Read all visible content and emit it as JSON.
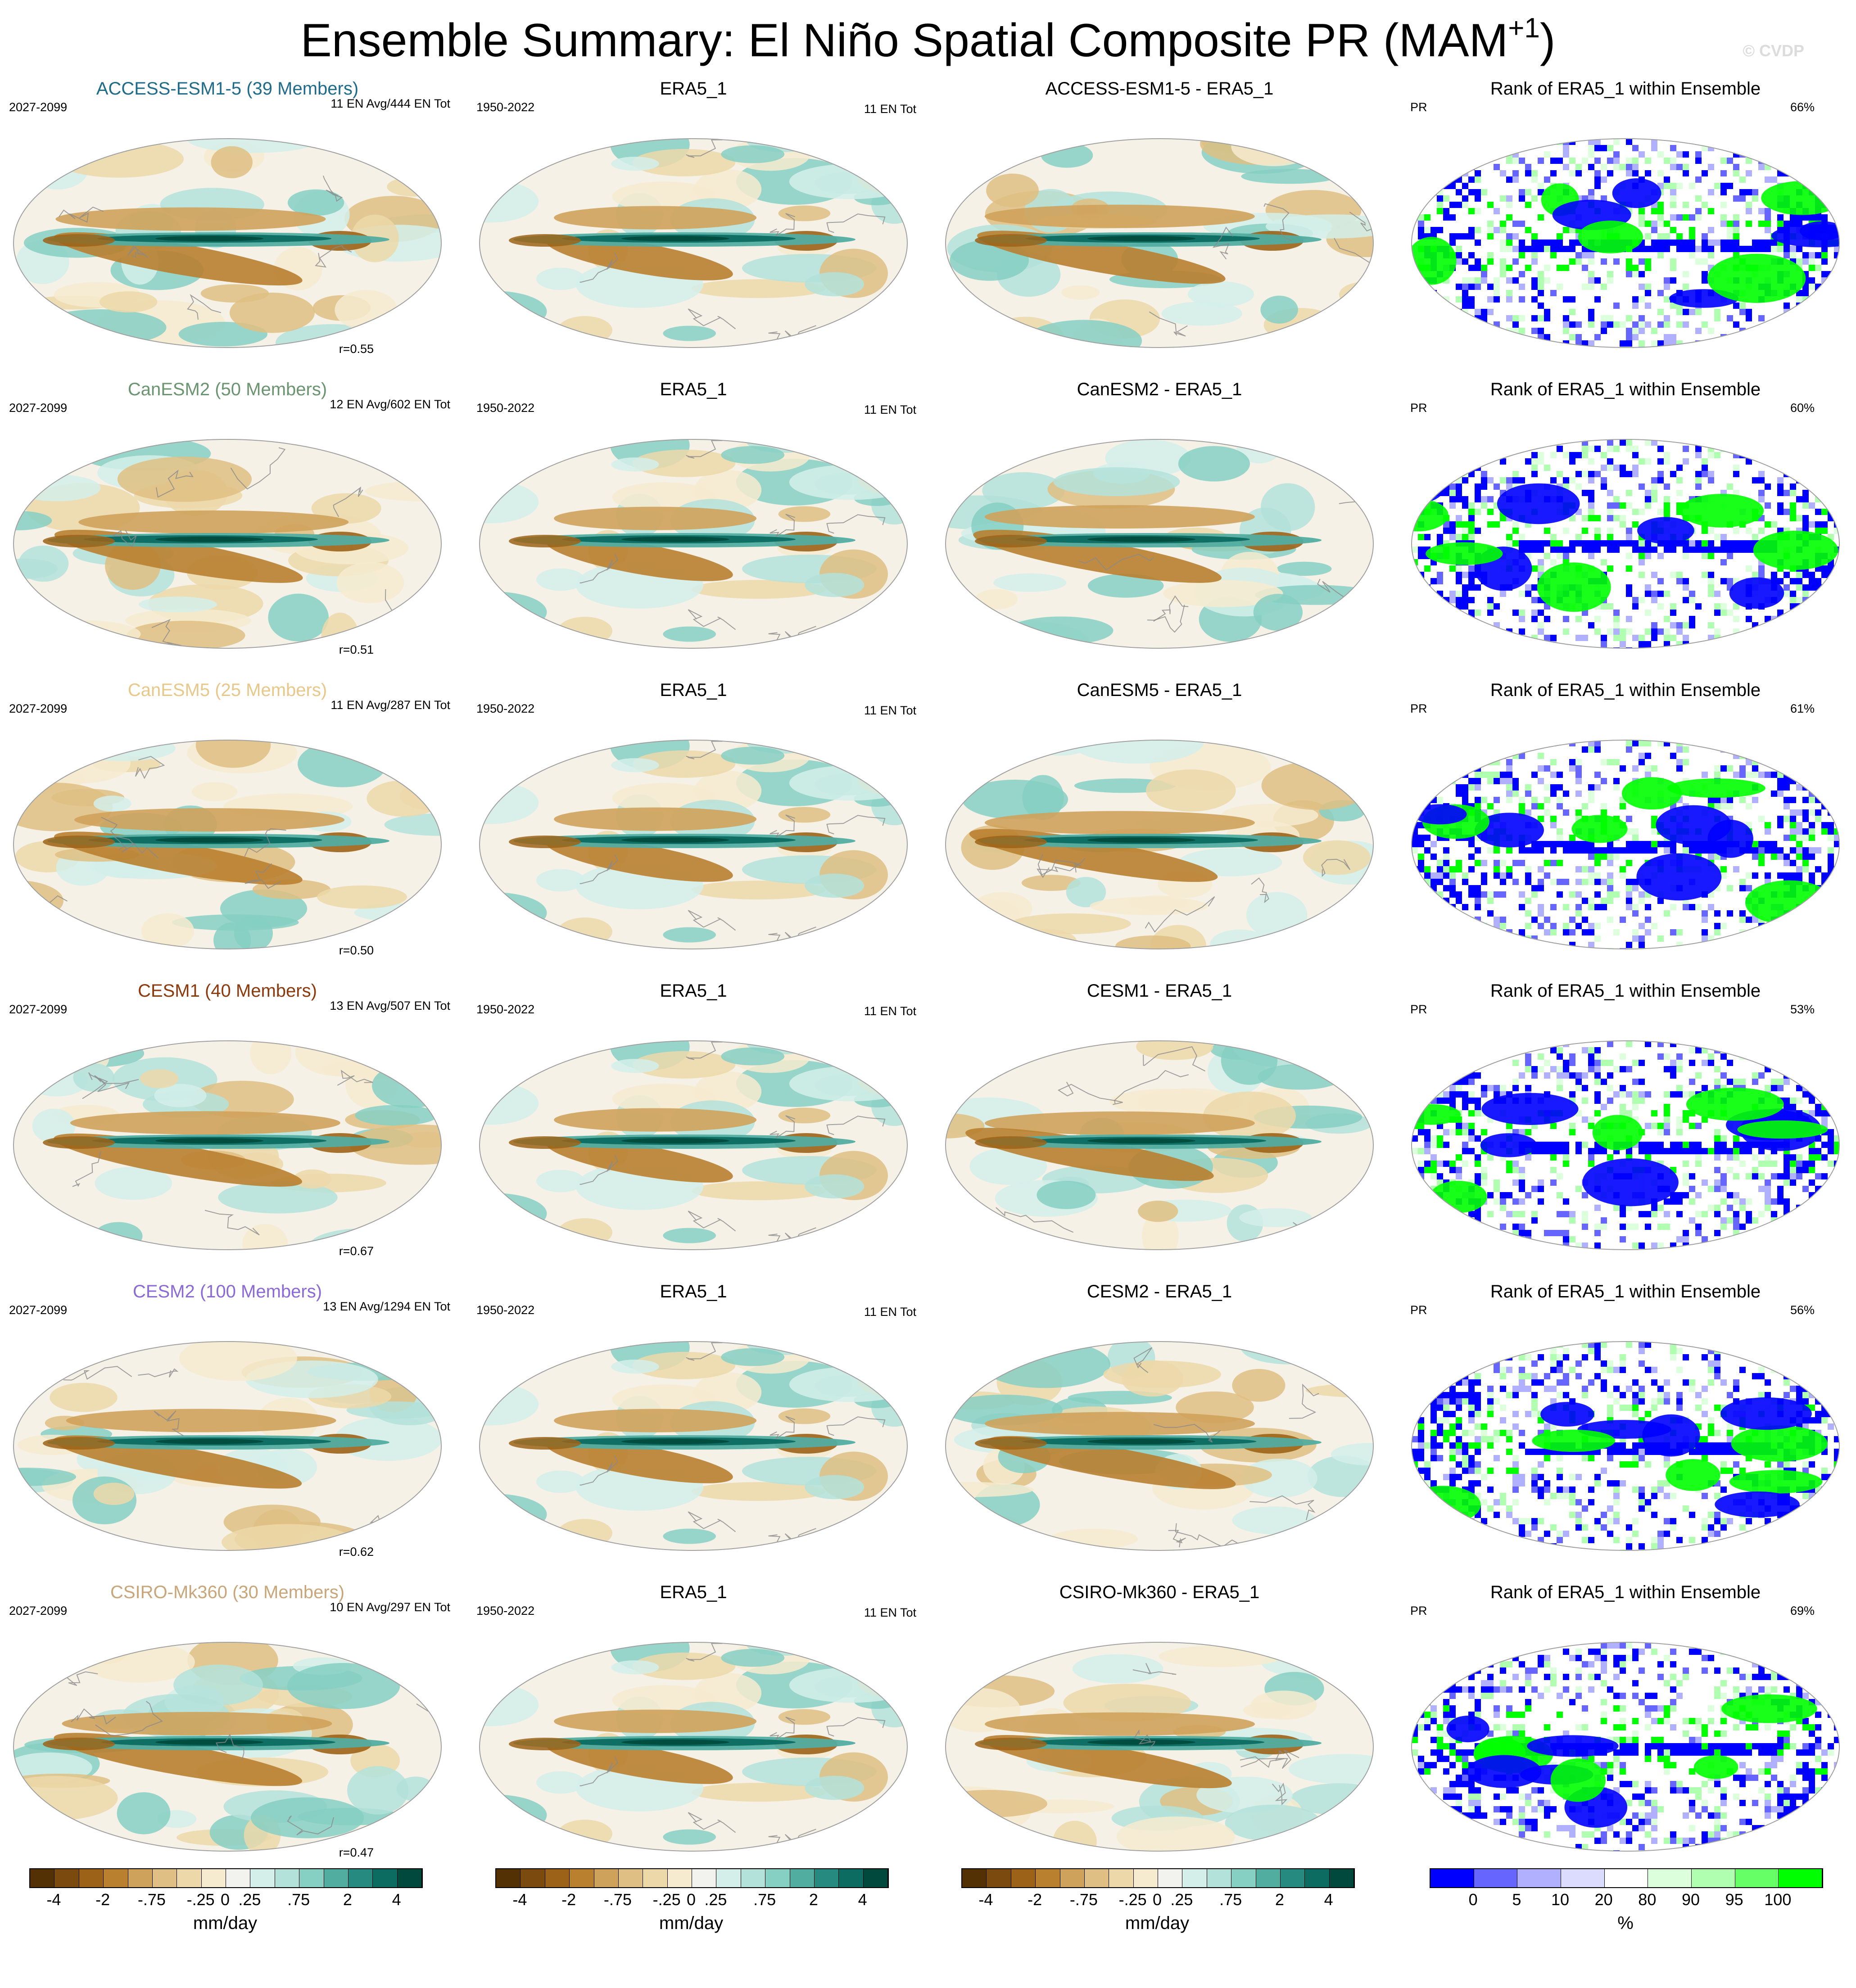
{
  "title": {
    "main": "Ensemble Summary: El Niño Spatial Composite PR (MAM",
    "sup": "+1",
    "close": ")",
    "watermark": "© CVDP"
  },
  "colors": {
    "brbg_16": [
      "#543005",
      "#7b4a0f",
      "#9c6318",
      "#b98030",
      "#cfa25b",
      "#dfbf83",
      "#ecd8a9",
      "#f6ebcf",
      "#f2f2ee",
      "#d4eeea",
      "#b3e2da",
      "#86cfc3",
      "#52ada1",
      "#268a80",
      "#0c6c61",
      "#00493c"
    ],
    "rank_9": [
      "#0000ff",
      "#6666ff",
      "#b0b0ff",
      "#dcdcff",
      "#ffffff",
      "#dcffdc",
      "#b0ffb0",
      "#66ff66",
      "#00ff00"
    ],
    "model_title": [
      "#1f6b8a",
      "#6b9470",
      "#e8c88a",
      "#8b3a0e",
      "#8a6ad6",
      "#c9a67a"
    ]
  },
  "rows": [
    {
      "model": "ACCESS-ESM1-5 (39 Members)",
      "years": "2027-2099",
      "count": "11 EN Avg/444 EN Tot",
      "r": "r=0.55",
      "obs_title": "ERA5_1",
      "obs_years": "1950-2022",
      "obs_count": "11 EN Tot",
      "diff_title": "ACCESS-ESM1-5 - ERA5_1",
      "rank_title": "Rank of ERA5_1 within Ensemble",
      "rank_var": "PR",
      "rank_pct": "66%"
    },
    {
      "model": "CanESM2 (50 Members)",
      "years": "2027-2099",
      "count": "12 EN Avg/602 EN Tot",
      "r": "r=0.51",
      "obs_title": "ERA5_1",
      "obs_years": "1950-2022",
      "obs_count": "11 EN Tot",
      "diff_title": "CanESM2 - ERA5_1",
      "rank_title": "Rank of ERA5_1 within Ensemble",
      "rank_var": "PR",
      "rank_pct": "60%"
    },
    {
      "model": "CanESM5 (25 Members)",
      "years": "2027-2099",
      "count": "11 EN Avg/287 EN Tot",
      "r": "r=0.50",
      "obs_title": "ERA5_1",
      "obs_years": "1950-2022",
      "obs_count": "11 EN Tot",
      "diff_title": "CanESM5 - ERA5_1",
      "rank_title": "Rank of ERA5_1 within Ensemble",
      "rank_var": "PR",
      "rank_pct": "61%"
    },
    {
      "model": "CESM1 (40 Members)",
      "years": "2027-2099",
      "count": "13 EN Avg/507 EN Tot",
      "r": "r=0.67",
      "obs_title": "ERA5_1",
      "obs_years": "1950-2022",
      "obs_count": "11 EN Tot",
      "diff_title": "CESM1 - ERA5_1",
      "rank_title": "Rank of ERA5_1 within Ensemble",
      "rank_var": "PR",
      "rank_pct": "53%"
    },
    {
      "model": "CESM2 (100 Members)",
      "years": "2027-2099",
      "count": "13 EN Avg/1294 EN Tot",
      "r": "r=0.62",
      "obs_title": "ERA5_1",
      "obs_years": "1950-2022",
      "obs_count": "11 EN Tot",
      "diff_title": "CESM2 - ERA5_1",
      "rank_title": "Rank of ERA5_1 within Ensemble",
      "rank_var": "PR",
      "rank_pct": "56%"
    },
    {
      "model": "CSIRO-Mk360 (30 Members)",
      "years": "2027-2099",
      "count": "10 EN Avg/297 EN Tot",
      "r": "r=0.47",
      "obs_title": "ERA5_1",
      "obs_years": "1950-2022",
      "obs_count": "11 EN Tot",
      "diff_title": "CSIRO-Mk360 - ERA5_1",
      "rank_title": "Rank of ERA5_1 within Ensemble",
      "rank_var": "PR",
      "rank_pct": "69%"
    }
  ],
  "colorbars": {
    "pr": {
      "ticks": [
        "-4",
        "-2",
        "-.75",
        "-.25",
        "0",
        ".25",
        ".75",
        "2",
        "4"
      ],
      "units": "mm/day"
    },
    "rank": {
      "ticks": [
        "0",
        "5",
        "10",
        "20",
        "80",
        "90",
        "95",
        "100"
      ],
      "units": "%"
    }
  },
  "chart_data": {
    "type": "heatmap",
    "projection": "robinson (Pacific-centered)",
    "layout": "6 rows x 4 columns of global maps",
    "columns": [
      "model ensemble-mean composite",
      "observations (ERA5_1)",
      "model minus observations",
      "rank of observations within ensemble"
    ],
    "variable": "PR",
    "season": "MAM+1",
    "pr_contour_levels": [
      -5,
      -4,
      -3,
      -2,
      -1,
      -0.75,
      -0.5,
      -0.25,
      0,
      0.25,
      0.5,
      0.75,
      1,
      2,
      3,
      4,
      5
    ],
    "rank_levels": [
      0,
      5,
      10,
      20,
      80,
      90,
      95,
      100
    ],
    "pattern_correlations": [
      0.55,
      0.51,
      0.5,
      0.67,
      0.62,
      0.47
    ],
    "rank_percent_within_10_90": [
      66,
      60,
      61,
      53,
      56,
      69
    ]
  }
}
